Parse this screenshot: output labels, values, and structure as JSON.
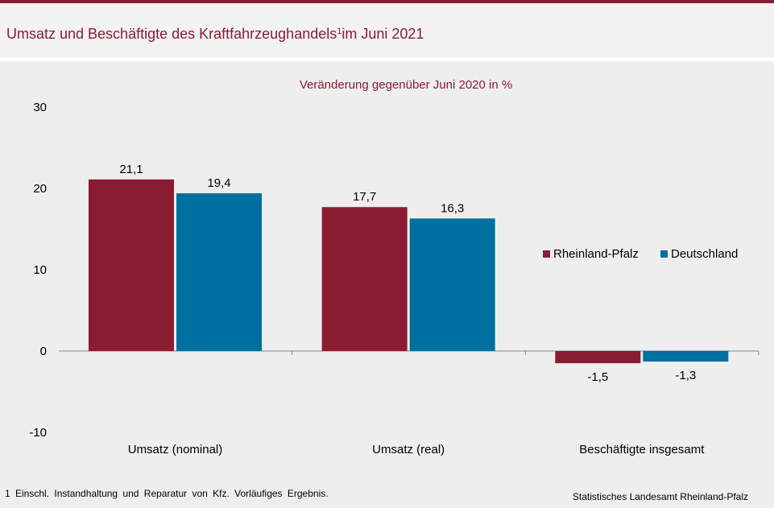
{
  "header": {
    "title_main": "Umsatz und Beschäftigte des Kraftfahrzeughandels",
    "title_sup": "1",
    "title_rest": "im Juni 2021"
  },
  "chart_data": {
    "type": "bar",
    "subtitle": "Veränderung gegenüber Juni 2020 in %",
    "categories": [
      "Umsatz (nominal)",
      "Umsatz (real)",
      "Beschäftigte insgesamt"
    ],
    "series": [
      {
        "name": "Rheinland-Pfalz",
        "values": [
          21.1,
          17.7,
          -1.5
        ],
        "labels": [
          "21,1",
          "17,7",
          "-1,5"
        ],
        "color": "#8a1c32"
      },
      {
        "name": "Deutschland",
        "values": [
          19.4,
          16.3,
          -1.3
        ],
        "labels": [
          "19,4",
          "16,3",
          "-1,3"
        ],
        "color": "#0070a0"
      }
    ],
    "yticks": [
      30,
      20,
      10,
      0,
      -10
    ],
    "ylim": [
      -10,
      30
    ],
    "grid": false,
    "legend": "right"
  },
  "footer": {
    "footnote": "1 Einschl. Instandhaltung und Reparatur von Kfz. Vorläufiges Ergebnis.",
    "source": "Statistisches Landesamt Rheinland-Pfalz"
  }
}
